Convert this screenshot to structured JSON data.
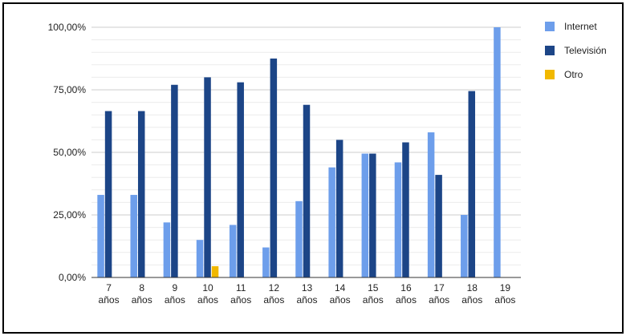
{
  "chart_data": {
    "type": "bar",
    "title": "",
    "xlabel": "",
    "ylabel": "",
    "categories": [
      [
        "7",
        "años"
      ],
      [
        "8",
        "años"
      ],
      [
        "9",
        "años"
      ],
      [
        "10",
        "años"
      ],
      [
        "11",
        "años"
      ],
      [
        "12",
        "años"
      ],
      [
        "13",
        "años"
      ],
      [
        "14",
        "años"
      ],
      [
        "15",
        "años"
      ],
      [
        "16",
        "años"
      ],
      [
        "17",
        "años"
      ],
      [
        "18",
        "años"
      ],
      [
        "19",
        "años"
      ]
    ],
    "yticks": [
      "0,00%",
      "25,00%",
      "50,00%",
      "75,00%",
      "100,00%"
    ],
    "ylim": [
      0,
      100
    ],
    "grid": true,
    "legend": "right",
    "series": [
      {
        "name": "Internet",
        "color": "#6d9eeb",
        "values": [
          33,
          33,
          22,
          15,
          21,
          12,
          30.5,
          44,
          49.5,
          46,
          58,
          25,
          100
        ]
      },
      {
        "name": "Televisión",
        "color": "#1c4587",
        "values": [
          66.5,
          66.5,
          77,
          80,
          78,
          87.5,
          69,
          55,
          49.5,
          54,
          41,
          74.5,
          0
        ]
      },
      {
        "name": "Otro",
        "color": "#f1b800",
        "values": [
          0,
          0,
          0,
          4.5,
          0,
          0,
          0,
          0,
          0,
          0,
          0,
          0,
          0
        ]
      }
    ]
  }
}
